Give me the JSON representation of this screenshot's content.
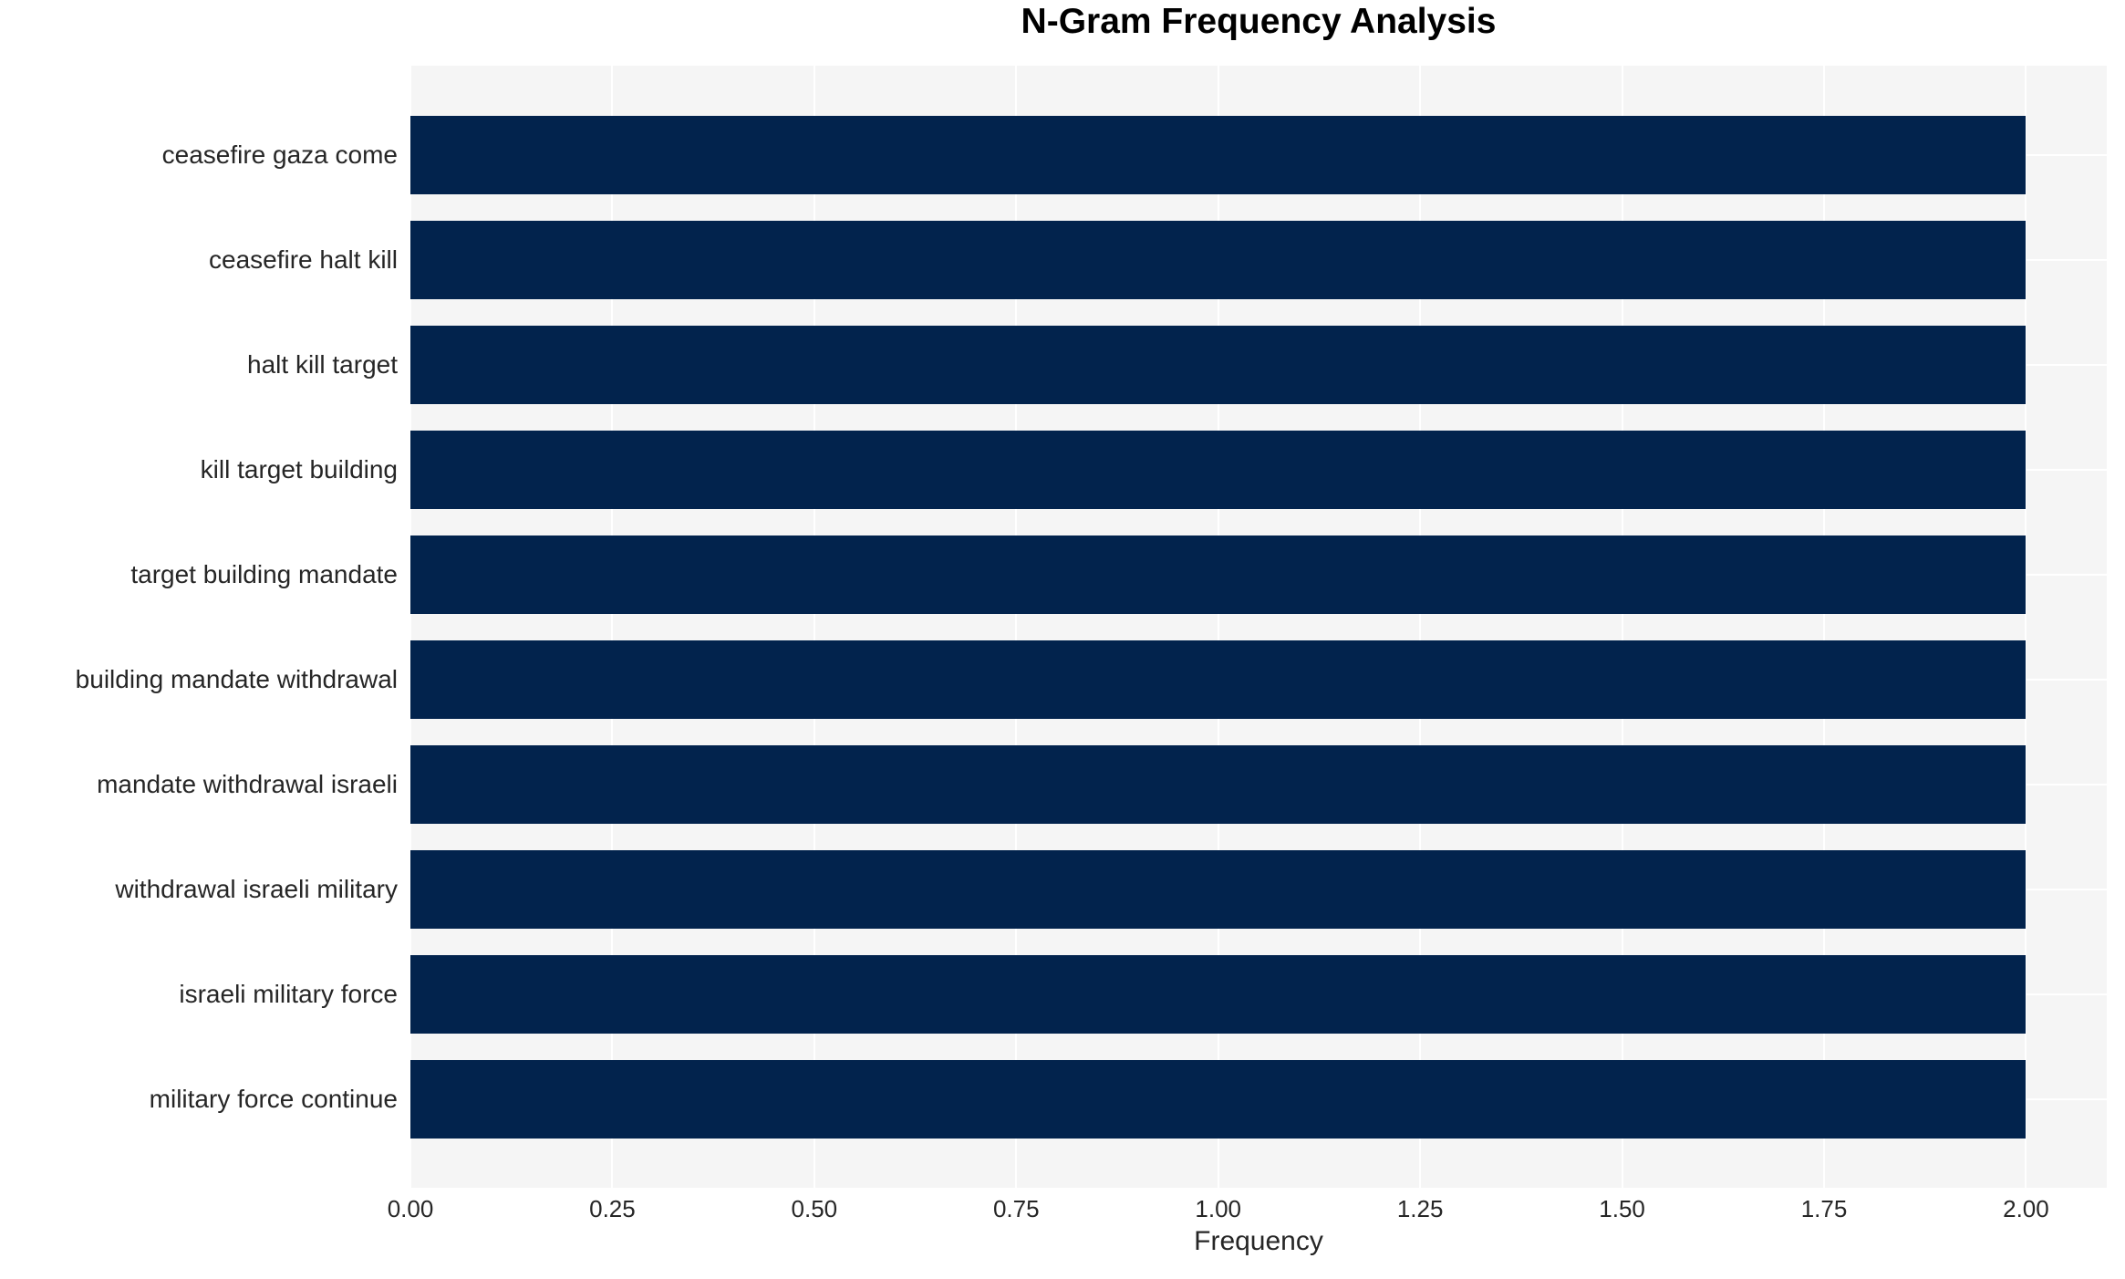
{
  "title": "N-Gram Frequency Analysis",
  "xlabel": "Frequency",
  "colors": {
    "bar": "#02234d",
    "plot_background": "#f5f5f5",
    "grid": "#ffffff",
    "title_text": "#000000",
    "tick_text": "#262626"
  },
  "chart_data": {
    "type": "bar",
    "orientation": "horizontal",
    "title": "N-Gram Frequency Analysis",
    "xlabel": "Frequency",
    "ylabel": "",
    "categories": [
      "ceasefire gaza come",
      "ceasefire halt kill",
      "halt kill target",
      "kill target building",
      "target building mandate",
      "building mandate withdrawal",
      "mandate withdrawal israeli",
      "withdrawal israeli military",
      "israeli military force",
      "military force continue"
    ],
    "values": [
      2,
      2,
      2,
      2,
      2,
      2,
      2,
      2,
      2,
      2
    ],
    "xlim": [
      0,
      2.1
    ],
    "xticks": [
      0,
      0.25,
      0.5,
      0.75,
      1.0,
      1.25,
      1.5,
      1.75,
      2.0
    ],
    "xtick_labels": [
      "0.00",
      "0.25",
      "0.50",
      "0.75",
      "1.00",
      "1.25",
      "1.50",
      "1.75",
      "2.00"
    ],
    "grid": true,
    "legend": false,
    "bar_color": "#02234d",
    "plot_background": "#f5f5f5",
    "grid_color": "#ffffff"
  }
}
